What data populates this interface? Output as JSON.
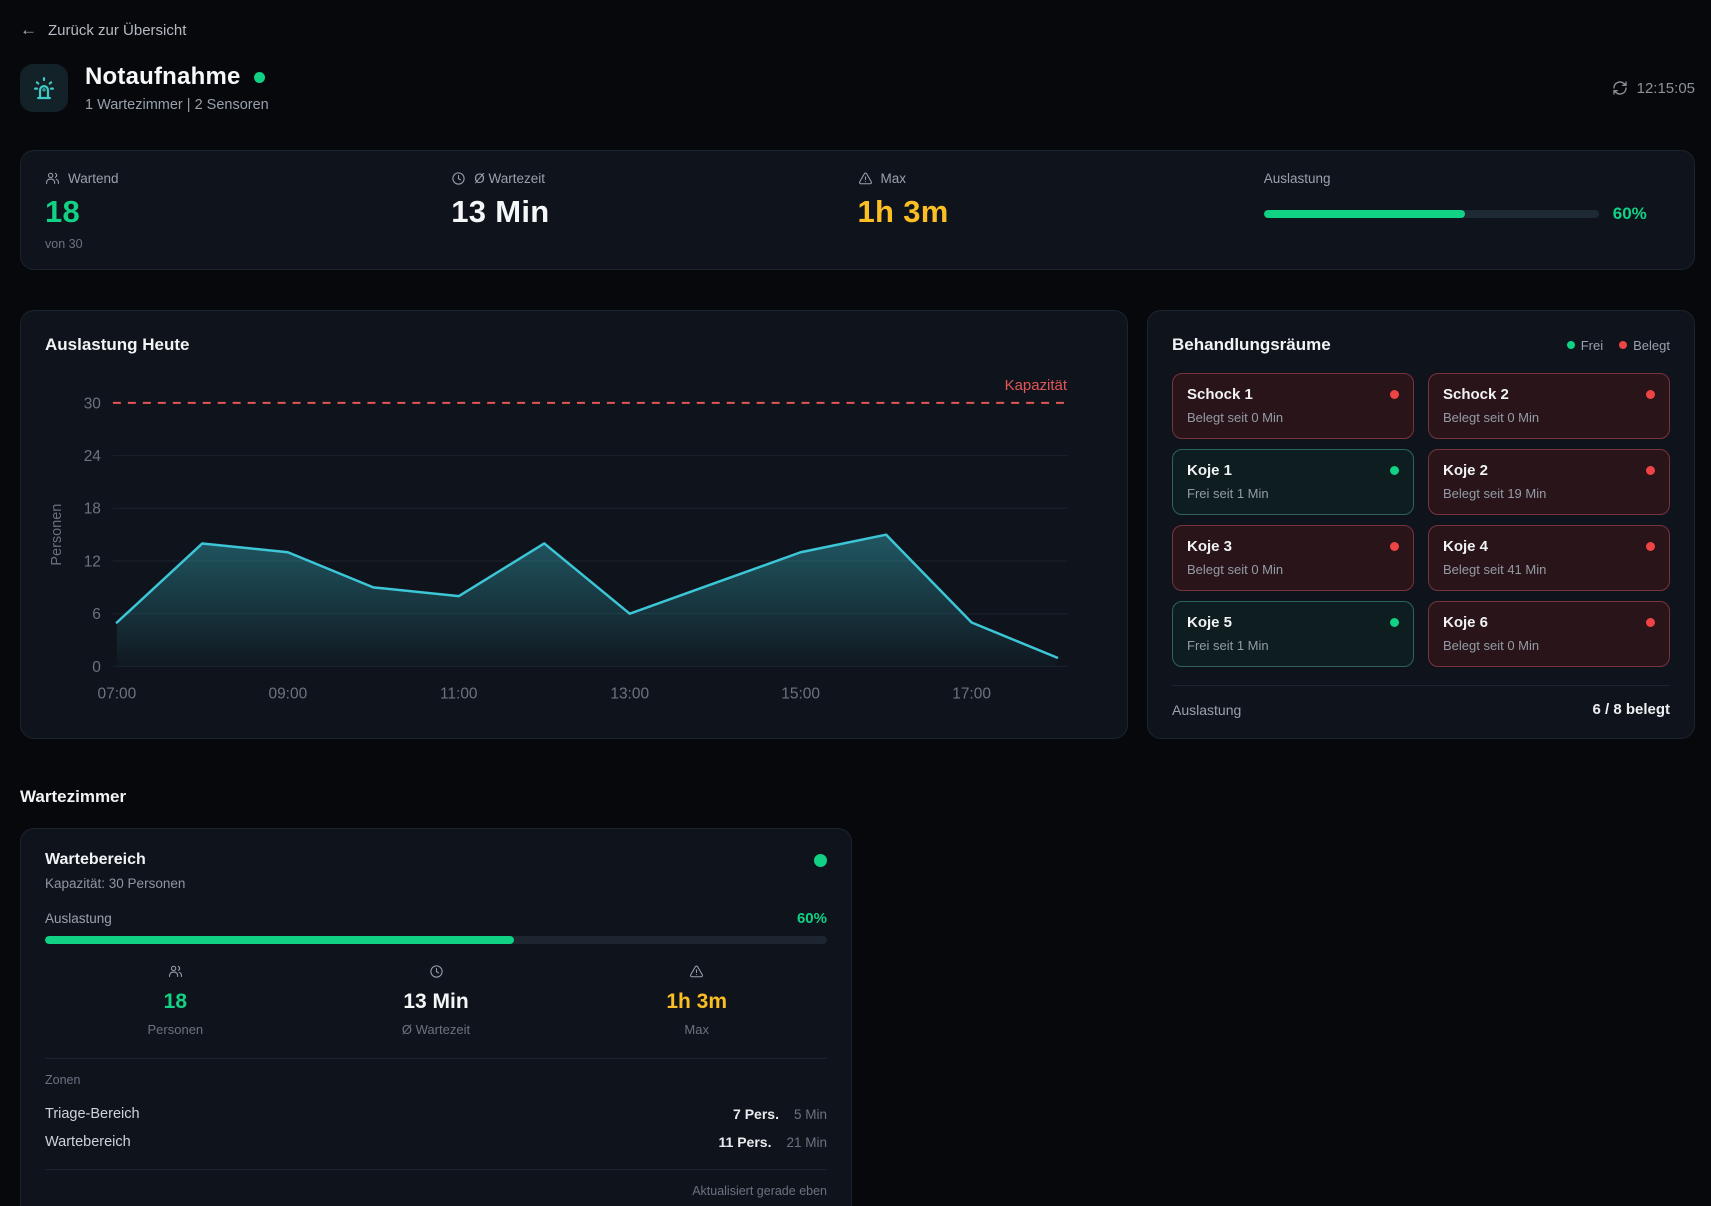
{
  "colors": {
    "green": "#10d184",
    "amber": "#fbbf24",
    "red": "#ef4444",
    "cyan": "#3cc6d6",
    "capacity_red": "#e25555"
  },
  "back_link": "Zurück zur Übersicht",
  "header": {
    "title": "Notaufnahme",
    "subtitle": "1 Wartezimmer | 2 Sensoren",
    "time": "12:15:05"
  },
  "stats": [
    {
      "label": "Wartend",
      "value": "18",
      "sub": "von 30"
    },
    {
      "label": "Ø Wartezeit",
      "value": "13 Min"
    },
    {
      "label": "Max",
      "value": "1h 3m"
    },
    {
      "label": "Auslastung",
      "percent": 60,
      "percent_label": "60%"
    }
  ],
  "chart_data": {
    "type": "area",
    "title": "Auslastung Heute",
    "x": [
      7,
      8,
      9,
      10,
      11,
      12,
      13,
      14,
      15,
      16,
      17,
      18
    ],
    "values": [
      5,
      14,
      13,
      9,
      8,
      14,
      6,
      9.5,
      13,
      15,
      5,
      1
    ],
    "x_ticks": [
      7,
      9,
      11,
      13,
      15,
      17
    ],
    "x_tick_labels": [
      "07:00",
      "09:00",
      "11:00",
      "13:00",
      "15:00",
      "17:00"
    ],
    "y_ticks": [
      0,
      6,
      12,
      18,
      24,
      30
    ],
    "ylim": [
      0,
      30
    ],
    "ylabel": "Personen",
    "grid": true,
    "legend_position": "none",
    "capacity_line": {
      "value": 30,
      "label": "Kapazität"
    },
    "line_color": "#3cc6d6"
  },
  "rooms_panel": {
    "title": "Behandlungsräume",
    "legend": [
      {
        "label": "Frei",
        "status": "free"
      },
      {
        "label": "Belegt",
        "status": "occupied"
      }
    ],
    "rooms": [
      {
        "name": "Schock 1",
        "status": "occupied",
        "note": "Belegt seit 0 Min"
      },
      {
        "name": "Schock 2",
        "status": "occupied",
        "note": "Belegt seit 0 Min"
      },
      {
        "name": "Koje 1",
        "status": "free",
        "note": "Frei seit 1 Min"
      },
      {
        "name": "Koje 2",
        "status": "occupied",
        "note": "Belegt seit 19 Min"
      },
      {
        "name": "Koje 3",
        "status": "occupied",
        "note": "Belegt seit 0 Min"
      },
      {
        "name": "Koje 4",
        "status": "occupied",
        "note": "Belegt seit 41 Min"
      },
      {
        "name": "Koje 5",
        "status": "free",
        "note": "Frei seit 1 Min"
      },
      {
        "name": "Koje 6",
        "status": "occupied",
        "note": "Belegt seit 0 Min"
      }
    ],
    "footer_label": "Auslastung",
    "footer_value": "6 / 8 belegt"
  },
  "waiting_section": {
    "title": "Wartezimmer",
    "card": {
      "title": "Wartebereich",
      "capacity": "Kapazität: 30 Personen",
      "utilization_label": "Auslastung",
      "utilization_pct": 60,
      "utilization_text": "60%",
      "stats": [
        {
          "value": "18",
          "label": "Personen",
          "color": "green"
        },
        {
          "value": "13 Min",
          "label": "Ø Wartezeit",
          "color": "white"
        },
        {
          "value": "1h 3m",
          "label": "Max",
          "color": "amber"
        }
      ],
      "zones_label": "Zonen",
      "zones": [
        {
          "name": "Triage-Bereich",
          "persons": "7 Pers.",
          "wait": "5 Min"
        },
        {
          "name": "Wartebereich",
          "persons": "11 Pers.",
          "wait": "21 Min"
        }
      ],
      "updated": "Aktualisiert gerade eben"
    }
  }
}
